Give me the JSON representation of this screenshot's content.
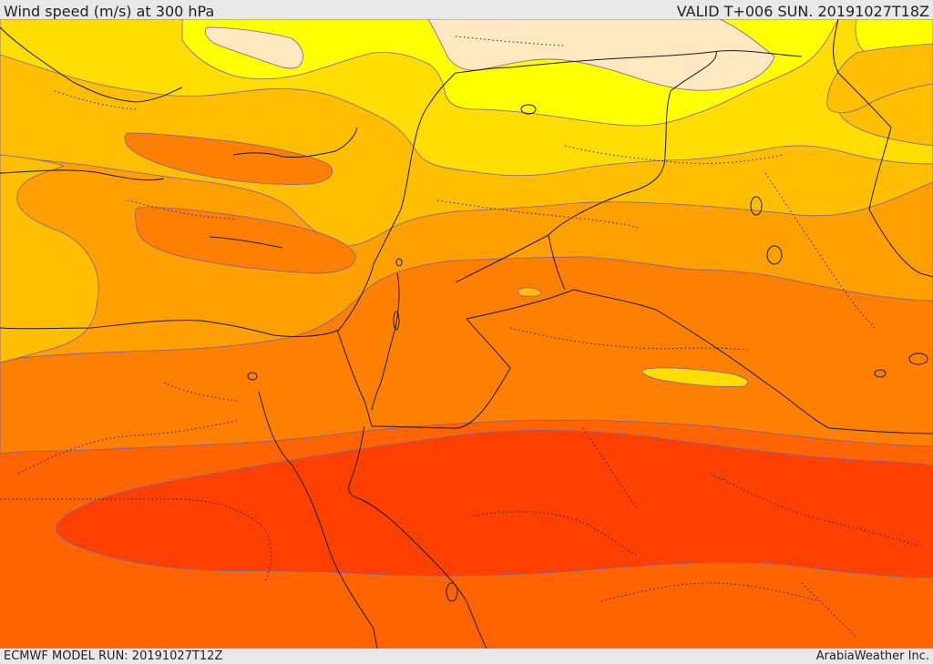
{
  "header": {
    "title": "Wind speed (m/s) at 300 hPa",
    "valid": "VALID T+006 SUN. 20191027T18Z"
  },
  "footer": {
    "model_run": "ECMWF MODEL RUN: 20191027T12Z",
    "credit": "ArabiaWeather Inc."
  },
  "map": {
    "field": "wind speed at 300 hPa",
    "color_bands": [
      "#ffe8c0",
      "#ffff00",
      "#ffdd00",
      "#ffbf00",
      "#ff9f00",
      "#ff8000",
      "#ff6400",
      "#ff4000"
    ]
  }
}
